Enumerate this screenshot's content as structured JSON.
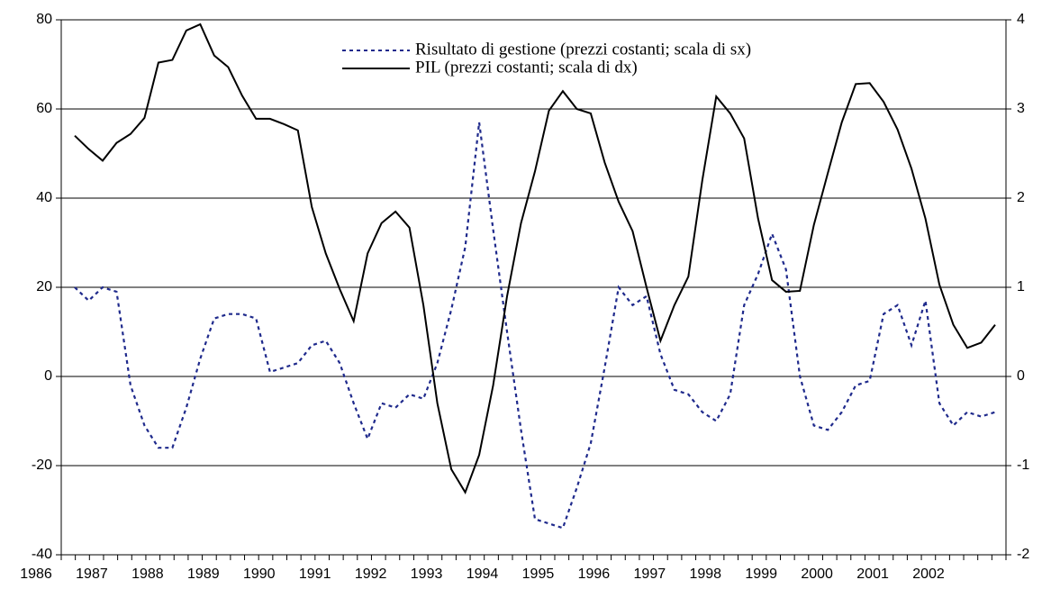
{
  "chart_data": {
    "type": "line",
    "categories": [
      "1986",
      null,
      null,
      null,
      "1987",
      null,
      null,
      null,
      "1988",
      null,
      null,
      null,
      "1989",
      null,
      null,
      null,
      "1990",
      null,
      null,
      null,
      "1991",
      null,
      null,
      null,
      "1992",
      null,
      null,
      null,
      "1993",
      null,
      null,
      null,
      "1994",
      null,
      null,
      null,
      "1995",
      null,
      null,
      null,
      "1996",
      null,
      null,
      null,
      "1997",
      null,
      null,
      null,
      "1998",
      null,
      null,
      null,
      "1999",
      null,
      null,
      null,
      "2000",
      null,
      null,
      null,
      "2001",
      null,
      null,
      null,
      "2002",
      null,
      null
    ],
    "series": [
      {
        "name": "Risultato di gestione (prezzi costanti; scala di sx)",
        "color": "#1f2a8c",
        "dash": true,
        "axis": "y",
        "values": [
          20,
          17,
          20,
          19,
          -2,
          -11,
          -16,
          -16,
          -7,
          4,
          13,
          14,
          14,
          13,
          1,
          2,
          3,
          7,
          8,
          3,
          -6,
          -14,
          -6,
          -7,
          -4,
          -5,
          3,
          15,
          29,
          57,
          33,
          10,
          -12,
          -32,
          -33,
          -34,
          -25,
          -15,
          2,
          20,
          16,
          18,
          5,
          -3,
          -4,
          -8,
          -10,
          -4,
          16,
          23,
          32,
          24,
          0,
          -11,
          -12,
          -8,
          -2,
          -1,
          14,
          16,
          7,
          17,
          -6,
          -11,
          -8,
          -9,
          -8
        ]
      },
      {
        "name": "PIL (prezzi costanti; scala di dx)",
        "color": "#000000",
        "dash": false,
        "axis": "y2",
        "values": [
          2.7,
          2.55,
          2.42,
          2.62,
          2.72,
          2.9,
          3.52,
          3.55,
          3.88,
          3.95,
          3.6,
          3.47,
          3.15,
          2.89,
          2.89,
          2.83,
          2.76,
          1.9,
          1.38,
          0.98,
          0.62,
          1.38,
          1.72,
          1.85,
          1.67,
          0.8,
          -0.3,
          -1.04,
          -1.3,
          -0.88,
          -0.1,
          0.9,
          1.72,
          2.3,
          2.98,
          3.2,
          3.0,
          2.95,
          2.4,
          1.96,
          1.63,
          1.0,
          0.4,
          0.8,
          1.12,
          2.2,
          3.14,
          2.95,
          2.67,
          1.77,
          1.08,
          0.95,
          0.96,
          1.7,
          2.28,
          2.85,
          3.28,
          3.29,
          3.08,
          2.77,
          2.33,
          1.77,
          1.03,
          0.58,
          0.32,
          0.38,
          0.58
        ]
      }
    ],
    "ylim": [
      -40,
      80
    ],
    "yticks": [
      -40,
      -20,
      0,
      20,
      40,
      60,
      80
    ],
    "y2lim": [
      -2,
      4
    ],
    "y2ticks": [
      -2,
      -1,
      0,
      1,
      2,
      3,
      4
    ],
    "grid": true
  }
}
